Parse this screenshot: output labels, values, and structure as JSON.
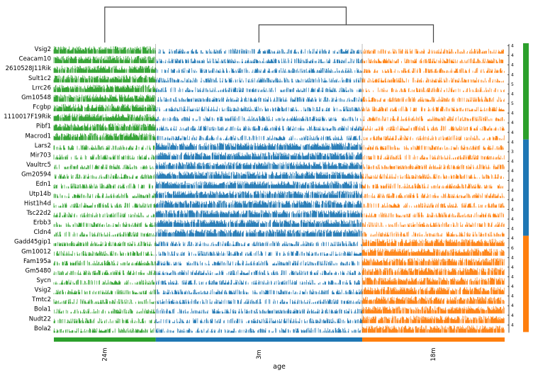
{
  "chart_data": {
    "type": "tracksplot",
    "xlabel": "age",
    "groups": [
      {
        "name": "24m",
        "color": "#2ca02c",
        "span": [
          0,
          0.2258
        ]
      },
      {
        "name": "3m",
        "color": "#1f77b4",
        "span": [
          0.2258,
          0.684
        ]
      },
      {
        "name": "18m",
        "color": "#ff7f0e",
        "span": [
          0.684,
          1.0
        ]
      }
    ],
    "genes": [
      {
        "name": "Vsig2",
        "max": "4",
        "group": "24m"
      },
      {
        "name": "Ceacam10",
        "max": "4",
        "group": "24m"
      },
      {
        "name": "2610528J11Rik",
        "max": "4",
        "group": "24m"
      },
      {
        "name": "Sult1c2",
        "max": "4",
        "group": "24m"
      },
      {
        "name": "Lrrc26",
        "max": "5",
        "group": "24m"
      },
      {
        "name": "Gm10548",
        "max": "4",
        "group": "24m"
      },
      {
        "name": "Fcgbp",
        "max": "5",
        "group": "24m"
      },
      {
        "name": "1110017F19Rik",
        "max": "4",
        "group": "24m"
      },
      {
        "name": "Pibf1",
        "max": "4",
        "group": "24m"
      },
      {
        "name": "Macrod1",
        "max": "4",
        "group": "24m"
      },
      {
        "name": "Lars2",
        "max": "4",
        "group": "3m"
      },
      {
        "name": "Mir703",
        "max": "3",
        "group": "3m"
      },
      {
        "name": "Vaultrc5",
        "max": "4",
        "group": "3m"
      },
      {
        "name": "Gm20594",
        "max": "4",
        "group": "3m"
      },
      {
        "name": "Edn1",
        "max": "4",
        "group": "3m"
      },
      {
        "name": "Utp14b",
        "max": "4",
        "group": "3m"
      },
      {
        "name": "Hist1h4d",
        "max": "4",
        "group": "3m"
      },
      {
        "name": "Tsc22d2",
        "max": "4",
        "group": "3m"
      },
      {
        "name": "Erbb3",
        "max": "4",
        "group": "3m"
      },
      {
        "name": "Cldn4",
        "max": "4",
        "group": "3m"
      },
      {
        "name": "Gadd45gip1",
        "max": "4",
        "group": "18m"
      },
      {
        "name": "Gm10012",
        "max": "6",
        "group": "18m"
      },
      {
        "name": "Fam195a",
        "max": "4",
        "group": "18m"
      },
      {
        "name": "Gm5480",
        "max": "4",
        "group": "18m"
      },
      {
        "name": "Sycn",
        "max": "4",
        "group": "18m"
      },
      {
        "name": "Vsig2",
        "max": "4",
        "group": "18m"
      },
      {
        "name": "Tmtc2",
        "max": "4",
        "group": "18m"
      },
      {
        "name": "Bola1",
        "max": "4",
        "group": "18m"
      },
      {
        "name": "Nudt22",
        "max": "4",
        "group": "18m"
      },
      {
        "name": "Bola2",
        "max": "4",
        "group": "18m"
      }
    ],
    "dendrogram": {
      "order": [
        "24m",
        "3m",
        "18m"
      ],
      "merges": [
        [
          "3m",
          "18m"
        ],
        [
          "24m",
          "3m+18m"
        ]
      ]
    }
  }
}
